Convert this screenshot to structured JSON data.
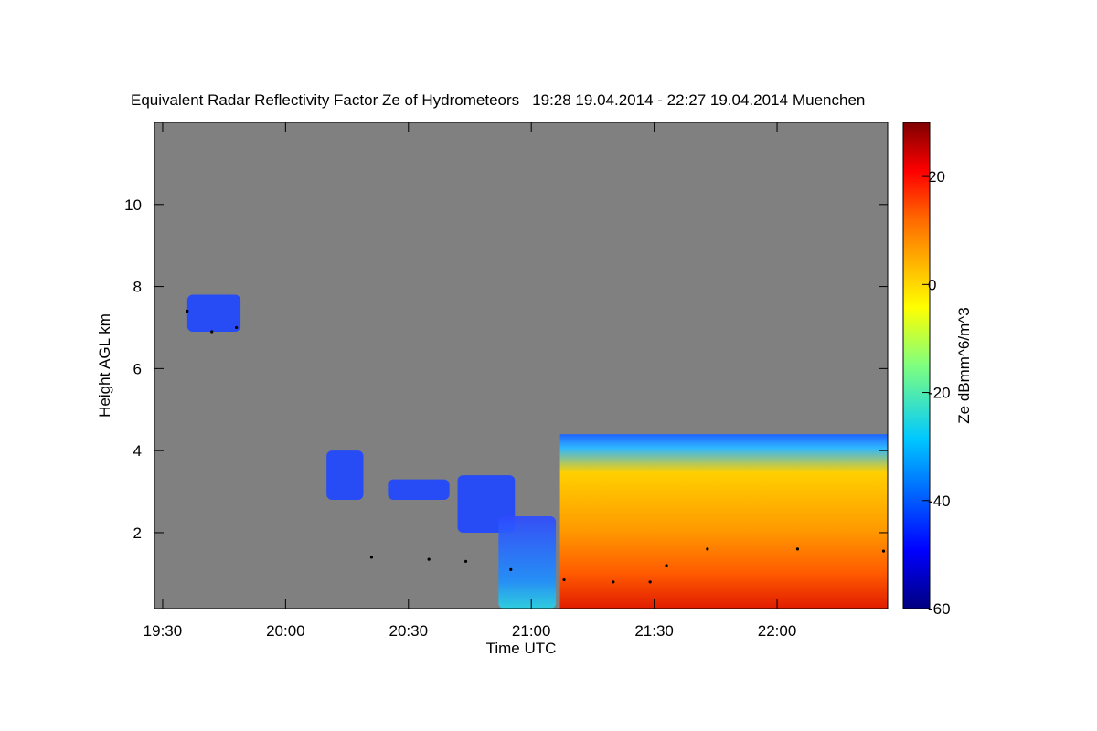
{
  "chart_data": {
    "type": "heatmap",
    "title": "Equivalent Radar Reflectivity Factor Ze of Hydrometeors",
    "time_range": "19:28 19.04.2014 - 22:27 19.04.2014",
    "location": "Muenchen",
    "xlabel": "Time UTC",
    "ylabel": "Height AGL km",
    "x_ticks": [
      "19:30",
      "20:00",
      "20:30",
      "21:00",
      "21:30",
      "22:00"
    ],
    "y_ticks": [
      2,
      4,
      6,
      8,
      10
    ],
    "ylim": [
      0.15,
      12
    ],
    "colorbar": {
      "label": "Ze dBmm^6/m^3",
      "range": [
        -60,
        30
      ],
      "ticks": [
        -60,
        -40,
        -20,
        0,
        20
      ],
      "colormap": "jet"
    },
    "background_color": "#808080",
    "echoes": [
      {
        "start": "19:36",
        "end": "19:49",
        "bottom_km": 6.9,
        "top_km": 7.8,
        "ze_dbz": -45,
        "kind": "cirrus"
      },
      {
        "start": "20:10",
        "end": "20:19",
        "bottom_km": 2.8,
        "top_km": 4.0,
        "ze_dbz": -45,
        "kind": "mid-level cloud"
      },
      {
        "start": "20:25",
        "end": "20:40",
        "bottom_km": 2.8,
        "top_km": 3.3,
        "ze_dbz": -45,
        "kind": "mid-level cloud"
      },
      {
        "start": "20:42",
        "end": "20:56",
        "bottom_km": 2.0,
        "top_km": 3.4,
        "ze_dbz": -45,
        "kind": "mid-level cloud"
      },
      {
        "start": "20:52",
        "end": "21:06",
        "bottom_km": 0.15,
        "top_km": 2.4,
        "ze_dbz": -35,
        "kind": "low cloud"
      },
      {
        "start": "21:07",
        "end": "22:27",
        "bottom_km": 0.15,
        "top_km": 4.4,
        "ze_dbz": 5,
        "kind": "precipitation"
      }
    ],
    "cloud_base_series": [
      {
        "time": "19:36",
        "km": 7.4
      },
      {
        "time": "19:42",
        "km": 6.9
      },
      {
        "time": "19:48",
        "km": 7.0
      },
      {
        "time": "20:21",
        "km": 1.4
      },
      {
        "time": "20:35",
        "km": 1.35
      },
      {
        "time": "20:44",
        "km": 1.3
      },
      {
        "time": "20:55",
        "km": 1.1
      },
      {
        "time": "21:08",
        "km": 0.85
      },
      {
        "time": "21:20",
        "km": 0.8
      },
      {
        "time": "21:29",
        "km": 0.8
      },
      {
        "time": "21:33",
        "km": 1.2
      },
      {
        "time": "21:43",
        "km": 1.6
      },
      {
        "time": "22:05",
        "km": 1.6
      },
      {
        "time": "22:26",
        "km": 1.55
      }
    ]
  }
}
